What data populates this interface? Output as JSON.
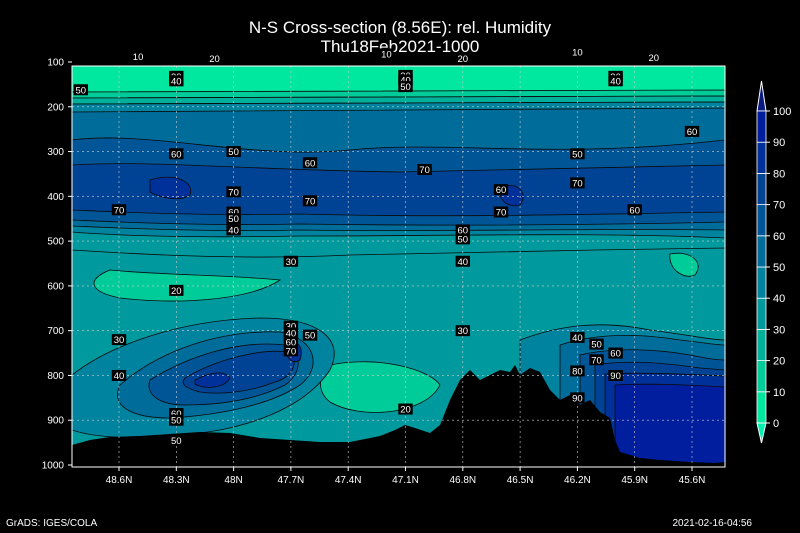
{
  "chart_data": {
    "type": "heatmap",
    "title": "N-S Cross-section (8.56E): rel. Humidity",
    "subtitle": "Thu18Feb2021-1000",
    "x_tick_labels": [
      "48.6N",
      "48.3N",
      "48N",
      "47.7N",
      "47.4N",
      "47.1N",
      "46.8N",
      "46.5N",
      "46.2N",
      "45.9N",
      "45.6N"
    ],
    "y_tick_labels": [
      "100",
      "200",
      "300",
      "400",
      "500",
      "600",
      "700",
      "800",
      "900",
      "1000"
    ],
    "y_range": [
      100,
      1000
    ],
    "y_inverted": true,
    "grid": true,
    "colorbar": {
      "levels": [
        "0",
        "10",
        "20",
        "30",
        "40",
        "50",
        "60",
        "70",
        "80",
        "90",
        "100"
      ],
      "colors": [
        "#00e7a0",
        "#00cc99",
        "#00b09a",
        "#009a9e",
        "#00839e",
        "#006c9a",
        "#005596",
        "#004394",
        "#00309a",
        "#001e9e"
      ],
      "top_arrow": "#0a1a80",
      "bottom_arrow": "#00f0b0"
    },
    "contour_labels": [
      {
        "text": "10",
        "x": 48.5,
        "p": 88
      },
      {
        "text": "20",
        "x": 48.1,
        "p": 92
      },
      {
        "text": "10",
        "x": 47.2,
        "p": 82
      },
      {
        "text": "20",
        "x": 46.8,
        "p": 92
      },
      {
        "text": "10",
        "x": 46.2,
        "p": 78
      },
      {
        "text": "20",
        "x": 45.8,
        "p": 90
      },
      {
        "text": "30",
        "x": 48.3,
        "p": 132
      },
      {
        "text": "40",
        "x": 48.3,
        "p": 142
      },
      {
        "text": "30",
        "x": 47.1,
        "p": 130
      },
      {
        "text": "40",
        "x": 47.1,
        "p": 140
      },
      {
        "text": "50",
        "x": 47.1,
        "p": 155
      },
      {
        "text": "30",
        "x": 46.0,
        "p": 132
      },
      {
        "text": "40",
        "x": 46.0,
        "p": 142
      },
      {
        "text": "50",
        "x": 48.8,
        "p": 162
      },
      {
        "text": "60",
        "x": 45.6,
        "p": 255
      },
      {
        "text": "60",
        "x": 48.3,
        "p": 305
      },
      {
        "text": "50",
        "x": 48.0,
        "p": 300
      },
      {
        "text": "60",
        "x": 47.6,
        "p": 325
      },
      {
        "text": "70",
        "x": 47.0,
        "p": 340
      },
      {
        "text": "50",
        "x": 46.2,
        "p": 305
      },
      {
        "text": "60",
        "x": 46.6,
        "p": 385
      },
      {
        "text": "70",
        "x": 46.2,
        "p": 370
      },
      {
        "text": "70",
        "x": 48.0,
        "p": 390
      },
      {
        "text": "70",
        "x": 47.6,
        "p": 410
      },
      {
        "text": "70",
        "x": 48.6,
        "p": 430
      },
      {
        "text": "60",
        "x": 48.0,
        "p": 435
      },
      {
        "text": "50",
        "x": 48.0,
        "p": 450
      },
      {
        "text": "40",
        "x": 48.0,
        "p": 475
      },
      {
        "text": "70",
        "x": 46.6,
        "p": 435
      },
      {
        "text": "60",
        "x": 45.9,
        "p": 430
      },
      {
        "text": "60",
        "x": 46.8,
        "p": 475
      },
      {
        "text": "50",
        "x": 46.8,
        "p": 495
      },
      {
        "text": "40",
        "x": 46.8,
        "p": 545
      },
      {
        "text": "30",
        "x": 47.7,
        "p": 545
      },
      {
        "text": "20",
        "x": 48.3,
        "p": 610
      },
      {
        "text": "30",
        "x": 48.6,
        "p": 720
      },
      {
        "text": "40",
        "x": 48.6,
        "p": 800
      },
      {
        "text": "30",
        "x": 47.7,
        "p": 690
      },
      {
        "text": "40",
        "x": 47.7,
        "p": 705
      },
      {
        "text": "50",
        "x": 47.6,
        "p": 710
      },
      {
        "text": "60",
        "x": 47.7,
        "p": 725
      },
      {
        "text": "70",
        "x": 47.7,
        "p": 745
      },
      {
        "text": "30",
        "x": 46.8,
        "p": 700
      },
      {
        "text": "40",
        "x": 46.2,
        "p": 715
      },
      {
        "text": "50",
        "x": 46.1,
        "p": 730
      },
      {
        "text": "60",
        "x": 46.0,
        "p": 750
      },
      {
        "text": "70",
        "x": 46.1,
        "p": 765
      },
      {
        "text": "80",
        "x": 46.2,
        "p": 790
      },
      {
        "text": "90",
        "x": 46.0,
        "p": 800
      },
      {
        "text": "90",
        "x": 46.2,
        "p": 850
      },
      {
        "text": "60",
        "x": 48.3,
        "p": 885
      },
      {
        "text": "50",
        "x": 48.3,
        "p": 900
      },
      {
        "text": "50",
        "x": 48.3,
        "p": 945
      },
      {
        "text": "20",
        "x": 47.1,
        "p": 875
      }
    ]
  },
  "footer": {
    "left": "GrADS: IGES/COLA",
    "right": "2021-02-16-04:56"
  }
}
